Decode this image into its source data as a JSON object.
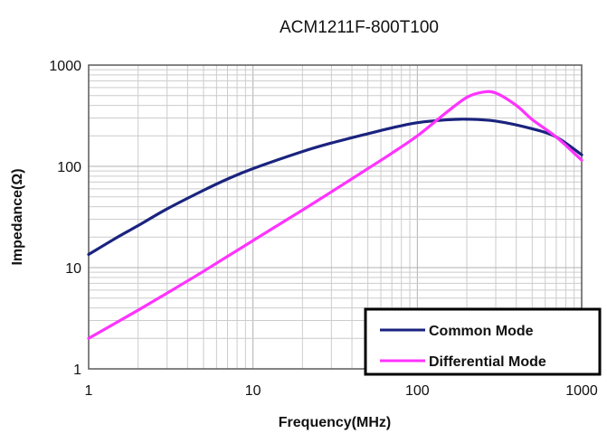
{
  "chart_data": {
    "type": "line",
    "title": "ACM1211F-800T100",
    "xlabel": "Frequency(MHz)",
    "ylabel": "Impedance(Ω)",
    "xscale": "log",
    "yscale": "log",
    "xlim": [
      1,
      1000
    ],
    "ylim": [
      1,
      1000
    ],
    "x_ticks": [
      1,
      10,
      100,
      1000
    ],
    "y_ticks": [
      1,
      10,
      100,
      1000
    ],
    "x_tick_labels": [
      "1",
      "10",
      "100",
      "1000"
    ],
    "y_tick_labels": [
      "1",
      "10",
      "100",
      "1000"
    ],
    "grid": true,
    "legend_position": "bottom-right",
    "series": [
      {
        "name": "Common Mode",
        "color": "#1a237e",
        "x": [
          1,
          1.5,
          2,
          3,
          5,
          7,
          10,
          20,
          30,
          50,
          70,
          100,
          150,
          200,
          300,
          500,
          700,
          1000
        ],
        "y": [
          13.5,
          20,
          26,
          38,
          58,
          75,
          95,
          140,
          170,
          210,
          240,
          270,
          288,
          292,
          280,
          235,
          195,
          130
        ]
      },
      {
        "name": "Differential Mode",
        "color": "#ff33ff",
        "x": [
          1,
          2,
          3,
          5,
          10,
          20,
          30,
          50,
          70,
          100,
          150,
          200,
          250,
          300,
          400,
          500,
          700,
          1000
        ],
        "y": [
          2,
          3.8,
          5.6,
          9.2,
          18.5,
          37,
          56,
          95,
          135,
          200,
          340,
          480,
          540,
          530,
          400,
          290,
          195,
          115
        ]
      }
    ]
  }
}
